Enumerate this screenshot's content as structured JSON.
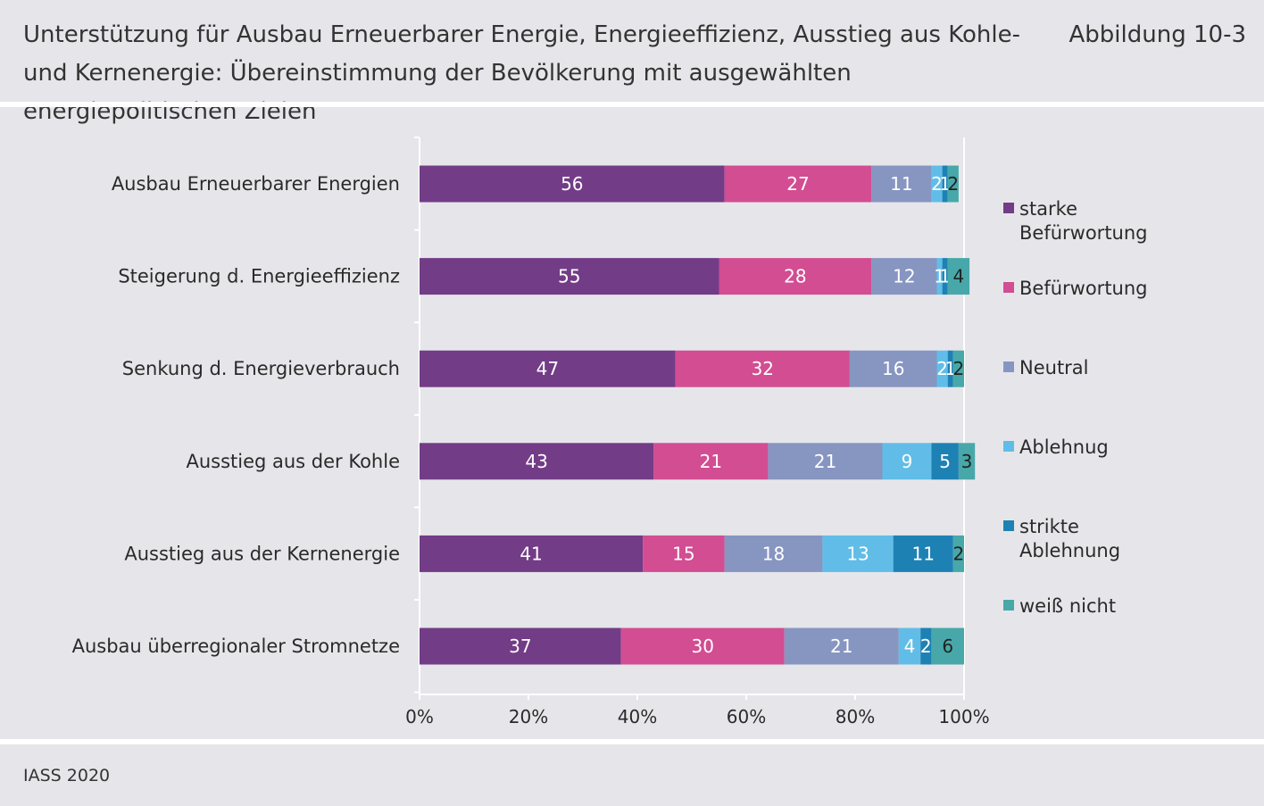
{
  "header": {
    "title": "Unterstützung für Ausbau Erneuerbarer Energie, Energieeffizienz, Ausstieg aus Kohle- und Kernenergie: Übereinstimmung der Bevölkerung mit ausgewählten energiepolitischen Zielen",
    "figure_label": "Abbildung 10-3"
  },
  "footer": {
    "source": "IASS 2020"
  },
  "chart_data": {
    "type": "bar",
    "orientation": "horizontal",
    "stacked": true,
    "categories": [
      "Ausbau Erneuerbarer Energien",
      "Steigerung d. Energieeffizienz",
      "Senkung d. Energieverbrauch",
      "Ausstieg aus der Kohle",
      "Ausstieg aus der Kernenergie",
      "Ausbau überregionaler Stromnetze"
    ],
    "series": [
      {
        "name": "starke Befürwortung",
        "color": "#733c87",
        "values": [
          56,
          55,
          47,
          43,
          41,
          37
        ]
      },
      {
        "name": "Befürwortung",
        "color": "#d24d92",
        "values": [
          27,
          28,
          32,
          21,
          15,
          30
        ]
      },
      {
        "name": "Neutral",
        "color": "#8795c1",
        "values": [
          11,
          12,
          16,
          21,
          18,
          21
        ]
      },
      {
        "name": "Ablehnug",
        "color": "#61bde7",
        "values": [
          2,
          1,
          2,
          9,
          13,
          4
        ]
      },
      {
        "name": "strikte Ablehnung",
        "color": "#1e81b4",
        "values": [
          1,
          1,
          1,
          5,
          11,
          2
        ]
      },
      {
        "name": "weiß nicht",
        "color": "#48a8a9",
        "values": [
          2,
          4,
          2,
          3,
          2,
          6
        ]
      }
    ],
    "label_colors": [
      "#ffffff",
      "#ffffff",
      "#ffffff",
      "#ffffff",
      "#ffffff",
      "#222222"
    ],
    "x_ticks": [
      "0%",
      "20%",
      "40%",
      "60%",
      "80%",
      "100%"
    ],
    "xlim": [
      0,
      100
    ],
    "legend_position": "right",
    "grid": false
  }
}
